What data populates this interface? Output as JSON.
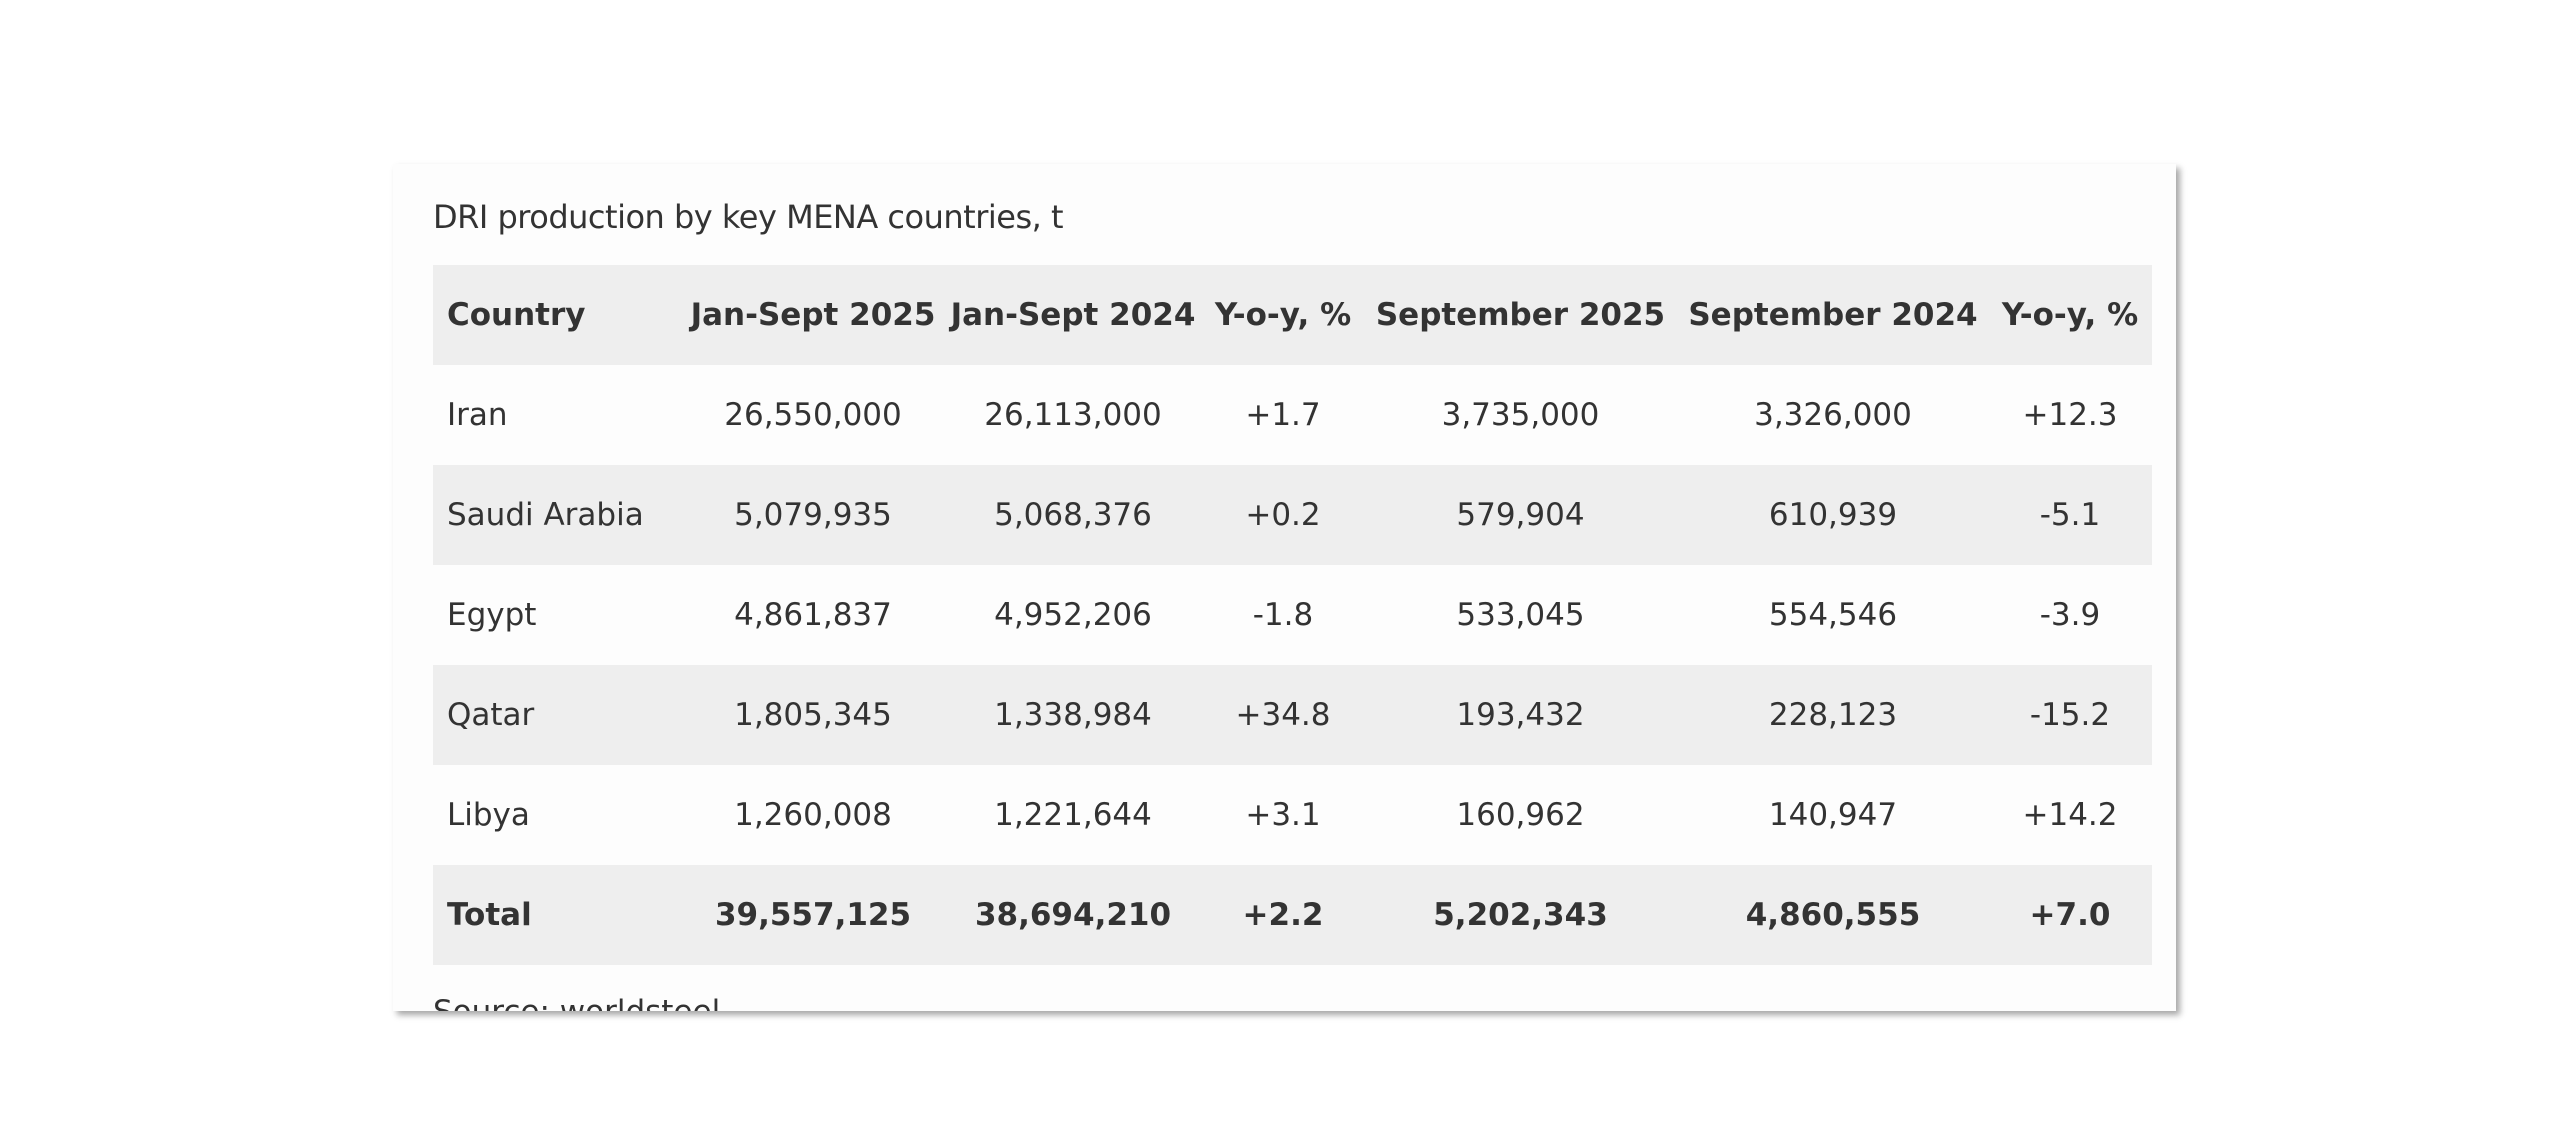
{
  "table": {
    "title": "DRI production by key MENA countries, t",
    "header": [
      "Country",
      "Jan-Sept 2025",
      "Jan-Sept 2024",
      "Y-o-y, %",
      "September 2025",
      "September 2024",
      "Y-o-y, %"
    ],
    "rows": [
      [
        "Iran",
        "26,550,000",
        "26,113,000",
        "+1.7",
        "3,735,000",
        "3,326,000",
        "+12.3"
      ],
      [
        "Saudi Arabia",
        "5,079,935",
        "5,068,376",
        "+0.2",
        "579,904",
        "610,939",
        "-5.1"
      ],
      [
        "Egypt",
        "4,861,837",
        "4,952,206",
        "-1.8",
        "533,045",
        "554,546",
        "-3.9"
      ],
      [
        "Qatar",
        "1,805,345",
        "1,338,984",
        "+34.8",
        "193,432",
        "228,123",
        "-15.2"
      ],
      [
        "Libya",
        "1,260,008",
        "1,221,644",
        "+3.1",
        "160,962",
        "140,947",
        "+14.2"
      ]
    ],
    "total": [
      "Total",
      "39,557,125",
      "38,694,210",
      "+2.2",
      "5,202,343",
      "4,860,555",
      "+7.0"
    ],
    "source": "Source: worldsteel"
  }
}
